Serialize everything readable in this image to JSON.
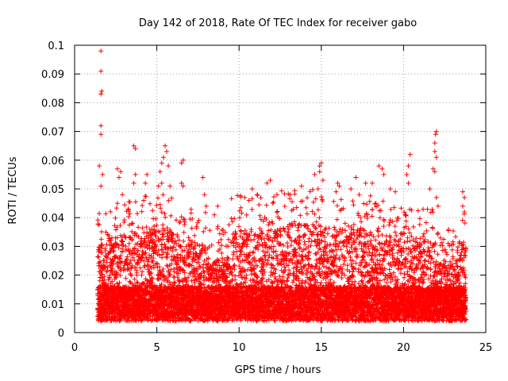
{
  "chart_data": {
    "type": "scatter",
    "title": "Day 142 of 2018, Rate Of TEC Index for receiver gabo",
    "xlabel": "GPS time / hours",
    "ylabel": "ROTI / TECUs",
    "xlim": [
      0,
      24
    ],
    "ylim": [
      0,
      0.1
    ],
    "x_ticks": [
      0,
      5,
      10,
      15,
      20,
      25
    ],
    "y_ticks": [
      0,
      0.01,
      0.02,
      0.03,
      0.04,
      0.05,
      0.06,
      0.07,
      0.08,
      0.09,
      0.1
    ],
    "x_tick_labels": [
      "0",
      "5",
      "10",
      "15",
      "20",
      "25"
    ],
    "y_tick_labels": [
      "0",
      "0.01",
      "0.02",
      "0.03",
      "0.04",
      "0.05",
      "0.06",
      "0.07",
      "0.08",
      "0.09",
      "0.1"
    ],
    "grid": true,
    "marker": "plus",
    "color": "#ff0000",
    "data_range_x": [
      1.4,
      23.8
    ],
    "series": [
      {
        "name": "",
        "points": [
          [
            1.6,
            0.098
          ],
          [
            1.6,
            0.091
          ],
          [
            1.6,
            0.083
          ],
          [
            1.65,
            0.084
          ],
          [
            1.6,
            0.072
          ],
          [
            1.6,
            0.069
          ],
          [
            1.5,
            0.058
          ],
          [
            1.6,
            0.051
          ],
          [
            1.7,
            0.055
          ],
          [
            2.6,
            0.057
          ],
          [
            2.7,
            0.054
          ],
          [
            2.8,
            0.056
          ],
          [
            2.9,
            0.048
          ],
          [
            2.6,
            0.045
          ],
          [
            3.6,
            0.065
          ],
          [
            3.7,
            0.064
          ],
          [
            3.7,
            0.055
          ],
          [
            3.6,
            0.052
          ],
          [
            4.3,
            0.052
          ],
          [
            4.4,
            0.055
          ],
          [
            4.2,
            0.046
          ],
          [
            5.1,
            0.051
          ],
          [
            5.2,
            0.056
          ],
          [
            5.3,
            0.059
          ],
          [
            5.4,
            0.061
          ],
          [
            5.5,
            0.065
          ],
          [
            5.6,
            0.063
          ],
          [
            5.7,
            0.058
          ],
          [
            5.3,
            0.052
          ],
          [
            5.8,
            0.051
          ],
          [
            6.5,
            0.059
          ],
          [
            6.6,
            0.06
          ],
          [
            6.5,
            0.052
          ],
          [
            6.6,
            0.051
          ],
          [
            7.8,
            0.054
          ],
          [
            7.9,
            0.048
          ],
          [
            8.0,
            0.044
          ],
          [
            8.7,
            0.044
          ],
          [
            8.5,
            0.041
          ],
          [
            10.6,
            0.046
          ],
          [
            10.8,
            0.05
          ],
          [
            11.1,
            0.048
          ],
          [
            11.7,
            0.052
          ],
          [
            11.9,
            0.053
          ],
          [
            12.3,
            0.048
          ],
          [
            13.1,
            0.048
          ],
          [
            13.8,
            0.051
          ],
          [
            14.6,
            0.055
          ],
          [
            14.9,
            0.058
          ],
          [
            15.0,
            0.059
          ],
          [
            14.9,
            0.056
          ],
          [
            15.1,
            0.053
          ],
          [
            14.8,
            0.05
          ],
          [
            16.0,
            0.052
          ],
          [
            16.1,
            0.051
          ],
          [
            15.9,
            0.049
          ],
          [
            16.8,
            0.05
          ],
          [
            17.1,
            0.054
          ],
          [
            17.3,
            0.048
          ],
          [
            17.7,
            0.052
          ],
          [
            18.1,
            0.052
          ],
          [
            18.5,
            0.058
          ],
          [
            18.7,
            0.057
          ],
          [
            18.8,
            0.055
          ],
          [
            19.2,
            0.05
          ],
          [
            19.5,
            0.049
          ],
          [
            20.4,
            0.062
          ],
          [
            20.3,
            0.058
          ],
          [
            20.2,
            0.055
          ],
          [
            20.3,
            0.052
          ],
          [
            21.6,
            0.05
          ],
          [
            21.9,
            0.066
          ],
          [
            21.95,
            0.069
          ],
          [
            22.0,
            0.07
          ],
          [
            21.9,
            0.063
          ],
          [
            22.0,
            0.061
          ],
          [
            21.8,
            0.057
          ],
          [
            21.9,
            0.056
          ],
          [
            22.0,
            0.047
          ],
          [
            23.6,
            0.049
          ],
          [
            23.7,
            0.047
          ],
          [
            23.6,
            0.044
          ],
          [
            23.7,
            0.042
          ],
          [
            22.1,
            0.044
          ]
        ]
      }
    ]
  }
}
